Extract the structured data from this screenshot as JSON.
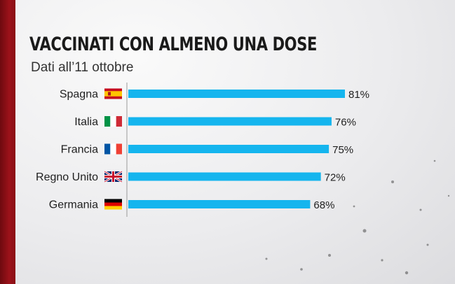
{
  "chart_data": {
    "type": "bar",
    "orientation": "horizontal",
    "title": "VACCINATI CON ALMENO UNA DOSE",
    "subtitle": "Dati all’11 ottobre",
    "categories": [
      "Spagna",
      "Italia",
      "Francia",
      "Regno Unito",
      "Germania"
    ],
    "values": [
      81,
      76,
      75,
      72,
      68
    ],
    "value_labels": [
      "81%",
      "76%",
      "75%",
      "72%",
      "68%"
    ],
    "flags": [
      "spain-flag",
      "italy-flag",
      "france-flag",
      "uk-flag",
      "germany-flag"
    ],
    "unit": "%",
    "xlim": [
      0,
      100
    ],
    "grid": false,
    "legend": "none"
  },
  "colors": {
    "bar": "#15b5ee",
    "text": "#1f1f1f",
    "stripe": "#9c121a",
    "axis": "#9a9a9a"
  }
}
